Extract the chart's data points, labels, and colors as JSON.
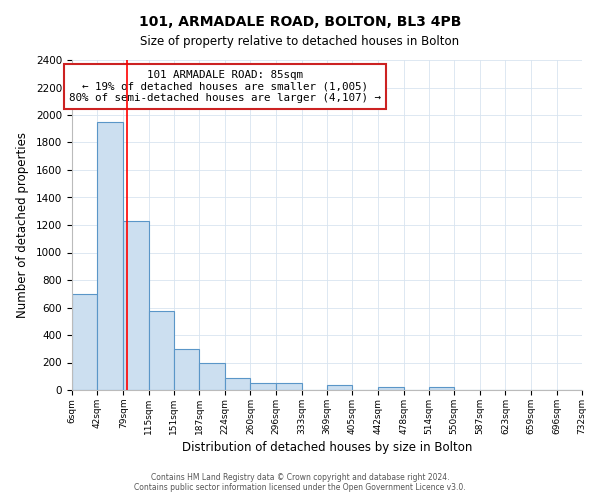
{
  "title": "101, ARMADALE ROAD, BOLTON, BL3 4PB",
  "subtitle": "Size of property relative to detached houses in Bolton",
  "xlabel": "Distribution of detached houses by size in Bolton",
  "ylabel": "Number of detached properties",
  "bin_edges": [
    6,
    42,
    79,
    115,
    151,
    187,
    224,
    260,
    296,
    333,
    369,
    405,
    442,
    478,
    514,
    550,
    587,
    623,
    659,
    696,
    732
  ],
  "bar_heights": [
    700,
    1950,
    1230,
    575,
    300,
    200,
    85,
    50,
    50,
    0,
    40,
    0,
    20,
    0,
    20,
    0,
    0,
    0,
    0,
    0
  ],
  "bar_color": "#ccdff0",
  "bar_edge_color": "#5a96c8",
  "red_line_x": 85,
  "ylim": [
    0,
    2400
  ],
  "yticks": [
    0,
    200,
    400,
    600,
    800,
    1000,
    1200,
    1400,
    1600,
    1800,
    2000,
    2200,
    2400
  ],
  "annotation_box_text": "101 ARMADALE ROAD: 85sqm\n← 19% of detached houses are smaller (1,005)\n80% of semi-detached houses are larger (4,107) →",
  "footer_line1": "Contains HM Land Registry data © Crown copyright and database right 2024.",
  "footer_line2": "Contains public sector information licensed under the Open Government Licence v3.0.",
  "tick_labels": [
    "6sqm",
    "42sqm",
    "79sqm",
    "115sqm",
    "151sqm",
    "187sqm",
    "224sqm",
    "260sqm",
    "296sqm",
    "333sqm",
    "369sqm",
    "405sqm",
    "442sqm",
    "478sqm",
    "514sqm",
    "550sqm",
    "587sqm",
    "623sqm",
    "659sqm",
    "696sqm",
    "732sqm"
  ],
  "grid_color": "#d8e4f0",
  "title_fontsize": 10,
  "subtitle_fontsize": 9
}
